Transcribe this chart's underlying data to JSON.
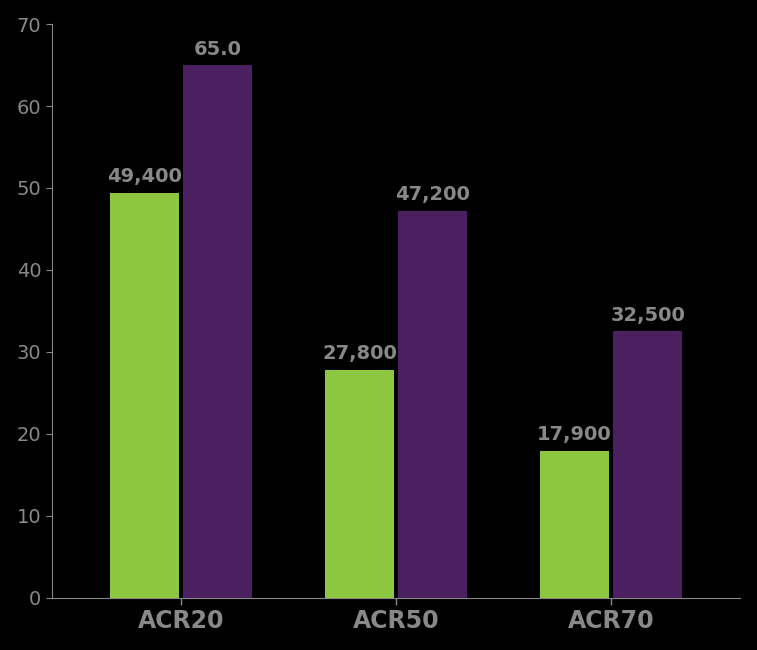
{
  "categories": [
    "ACR20",
    "ACR50",
    "ACR70"
  ],
  "green_values": [
    49.4,
    27.8,
    17.9
  ],
  "purple_values": [
    65.0,
    47.2,
    32.5
  ],
  "green_labels": [
    "49,400",
    "27,800",
    "17,900"
  ],
  "purple_labels": [
    "65.0",
    "47,200",
    "32,500"
  ],
  "bar_color_green": "#8dc63f",
  "bar_color_purple": "#4a2060",
  "background_color": "#000000",
  "text_color": "#888888",
  "label_color": "#888888",
  "ylim": [
    0,
    70
  ],
  "yticks": [
    0,
    10,
    20,
    30,
    40,
    50,
    60,
    70
  ],
  "bar_width": 0.32,
  "label_fontsize": 14,
  "tick_fontsize": 14,
  "xlabel_fontsize": 17
}
